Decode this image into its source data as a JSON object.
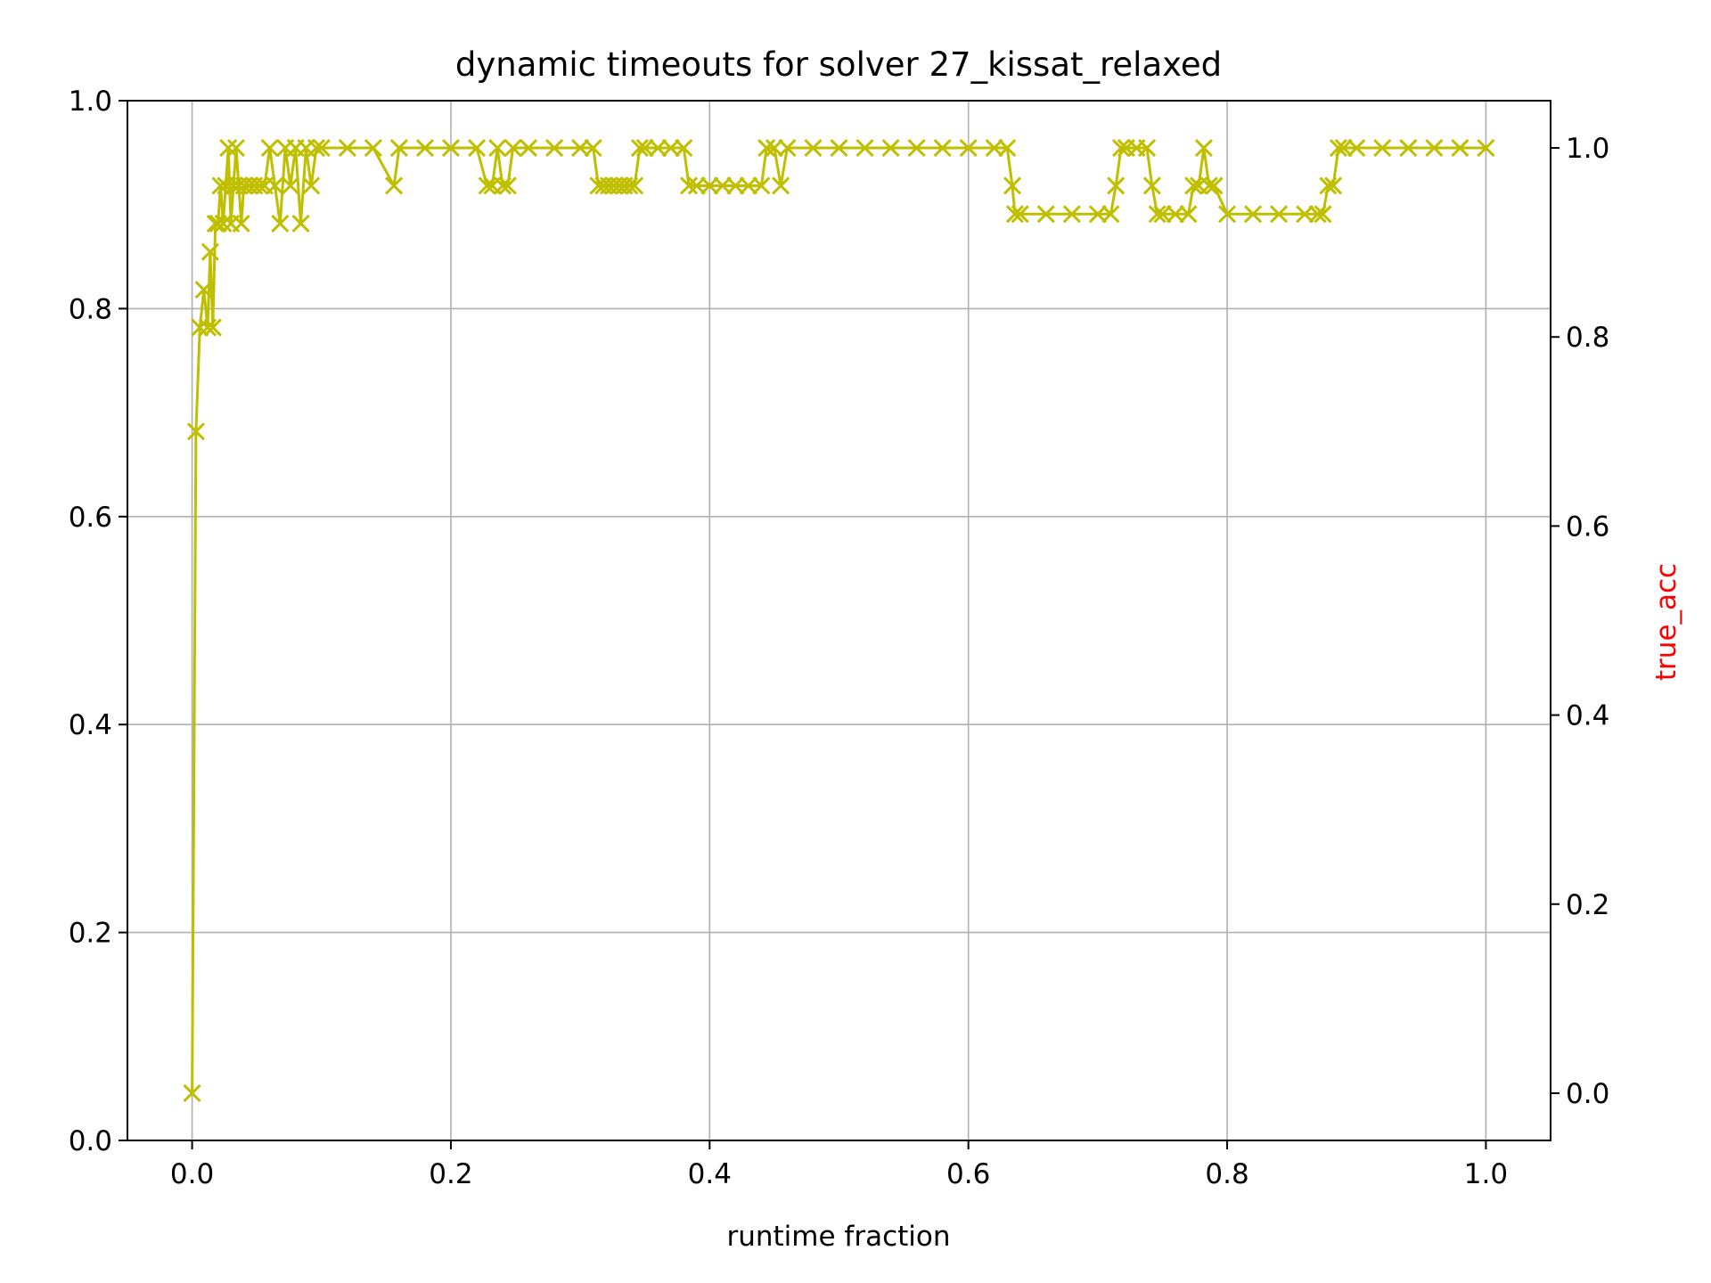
{
  "chart_data": {
    "type": "line",
    "title": "dynamic timeouts for solver 27_kissat_relaxed",
    "xlabel": "runtime fraction",
    "ylabel_left": "",
    "ylabel_right": "true_acc",
    "xlim": [
      -0.05,
      1.05
    ],
    "ylim_left": [
      0.0,
      1.0
    ],
    "ylim_right": [
      -0.05,
      1.05
    ],
    "x_ticks": [
      "0.0",
      "0.2",
      "0.4",
      "0.6",
      "0.8",
      "1.0"
    ],
    "y_left_ticks": [
      "0.0",
      "0.2",
      "0.4",
      "0.6",
      "0.8",
      "1.0"
    ],
    "y_right_ticks": [
      "0.0",
      "0.2",
      "0.4",
      "0.6",
      "0.8",
      "1.0"
    ],
    "grid": true,
    "marker": "x",
    "series": [
      {
        "name": "",
        "axis": "right",
        "color": "#bfbf00",
        "x": [
          0.0,
          0.003,
          0.006,
          0.009,
          0.012,
          0.014,
          0.016,
          0.018,
          0.02,
          0.022,
          0.024,
          0.026,
          0.028,
          0.03,
          0.032,
          0.034,
          0.036,
          0.038,
          0.04,
          0.044,
          0.048,
          0.052,
          0.056,
          0.06,
          0.064,
          0.068,
          0.072,
          0.076,
          0.08,
          0.084,
          0.088,
          0.092,
          0.096,
          0.1,
          0.12,
          0.14,
          0.156,
          0.16,
          0.18,
          0.2,
          0.22,
          0.228,
          0.232,
          0.236,
          0.24,
          0.244,
          0.248,
          0.26,
          0.28,
          0.3,
          0.31,
          0.314,
          0.318,
          0.322,
          0.326,
          0.33,
          0.334,
          0.338,
          0.342,
          0.346,
          0.35,
          0.36,
          0.37,
          0.38,
          0.384,
          0.39,
          0.4,
          0.41,
          0.42,
          0.43,
          0.44,
          0.444,
          0.45,
          0.455,
          0.46,
          0.48,
          0.5,
          0.52,
          0.54,
          0.56,
          0.58,
          0.6,
          0.62,
          0.63,
          0.634,
          0.636,
          0.64,
          0.66,
          0.68,
          0.7,
          0.71,
          0.714,
          0.718,
          0.722,
          0.73,
          0.738,
          0.742,
          0.746,
          0.75,
          0.76,
          0.77,
          0.774,
          0.778,
          0.782,
          0.786,
          0.79,
          0.8,
          0.82,
          0.84,
          0.86,
          0.87,
          0.874,
          0.878,
          0.882,
          0.886,
          0.89,
          0.9,
          0.92,
          0.94,
          0.96,
          0.98,
          1.0
        ],
        "y": [
          0.0,
          0.7,
          0.81,
          0.85,
          0.81,
          0.89,
          0.81,
          0.92,
          0.92,
          0.96,
          0.92,
          0.96,
          1.0,
          0.92,
          0.96,
          1.0,
          0.96,
          0.92,
          0.96,
          0.96,
          0.96,
          0.96,
          0.96,
          1.0,
          0.96,
          0.92,
          1.0,
          0.96,
          1.0,
          0.92,
          1.0,
          0.96,
          1.0,
          1.0,
          1.0,
          1.0,
          0.96,
          1.0,
          1.0,
          1.0,
          1.0,
          0.96,
          0.96,
          1.0,
          0.96,
          0.96,
          1.0,
          1.0,
          1.0,
          1.0,
          1.0,
          0.96,
          0.96,
          0.96,
          0.96,
          0.96,
          0.96,
          0.96,
          0.96,
          1.0,
          1.0,
          1.0,
          1.0,
          1.0,
          0.96,
          0.96,
          0.96,
          0.96,
          0.96,
          0.96,
          0.96,
          1.0,
          1.0,
          0.96,
          1.0,
          1.0,
          1.0,
          1.0,
          1.0,
          1.0,
          1.0,
          1.0,
          1.0,
          1.0,
          0.96,
          0.93,
          0.93,
          0.93,
          0.93,
          0.93,
          0.93,
          0.96,
          1.0,
          1.0,
          1.0,
          1.0,
          0.96,
          0.93,
          0.93,
          0.93,
          0.93,
          0.96,
          0.96,
          1.0,
          0.96,
          0.96,
          0.93,
          0.93,
          0.93,
          0.93,
          0.93,
          0.93,
          0.96,
          0.96,
          1.0,
          1.0,
          1.0,
          1.0,
          1.0,
          1.0,
          1.0,
          1.0
        ]
      }
    ]
  }
}
